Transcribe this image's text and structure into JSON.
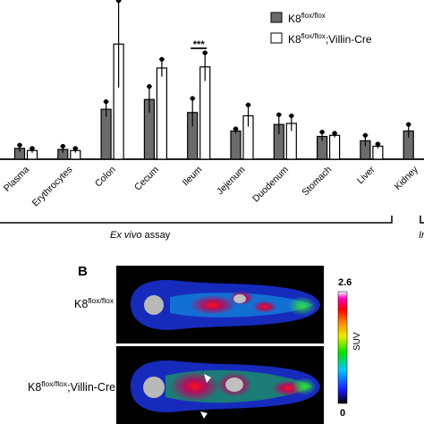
{
  "chart_data": {
    "type": "bar",
    "categories": [
      "Plasma",
      "Erythrocytes",
      "Colon",
      "Cecum",
      "Ileum",
      "Jejenum",
      "Duodenum",
      "Stomach",
      "Liver",
      "Kidney"
    ],
    "series": [
      {
        "name": "K8",
        "sup": "flox/flox",
        "color": "#6b6b6b",
        "values": [
          1.0,
          0.9,
          4.6,
          5.5,
          4.3,
          2.6,
          3.2,
          2.1,
          1.7,
          2.6
        ],
        "errors": [
          0.3,
          0.3,
          0.7,
          1.2,
          1.3,
          0.2,
          0.9,
          0.4,
          0.5,
          0.6
        ]
      },
      {
        "name": "K8",
        "sup": "flox/flox",
        "suffix": ";Villin-Cre",
        "color": "#ffffff",
        "values": [
          0.8,
          0.8,
          10.6,
          8.4,
          8.5,
          4.0,
          3.3,
          2.2,
          1.2,
          null
        ],
        "errors": [
          0.2,
          0.2,
          4.0,
          0.8,
          1.3,
          1.0,
          0.7,
          0.2,
          0.2,
          null
        ]
      }
    ],
    "significance": [
      {
        "category": "Colon",
        "label": "***"
      },
      {
        "category": "Ileum",
        "label": "***"
      }
    ],
    "ylim": [
      0,
      14
    ],
    "xlabel": "",
    "ylabel": "",
    "group_labels": [
      {
        "label": "Ex vivo",
        "suffix": " assay"
      },
      {
        "label": "In",
        "suffix": ""
      }
    ],
    "legend": "top-right"
  },
  "panel_b": {
    "letter": "B",
    "rows": [
      {
        "name": "K8",
        "sup": "flox/flox",
        "suffix": ""
      },
      {
        "name": "K8",
        "sup": "flox/flox",
        "suffix": ";Villin-Cre"
      }
    ],
    "colorbar": {
      "max": "2.6",
      "min": "0",
      "label": "SUV"
    }
  }
}
